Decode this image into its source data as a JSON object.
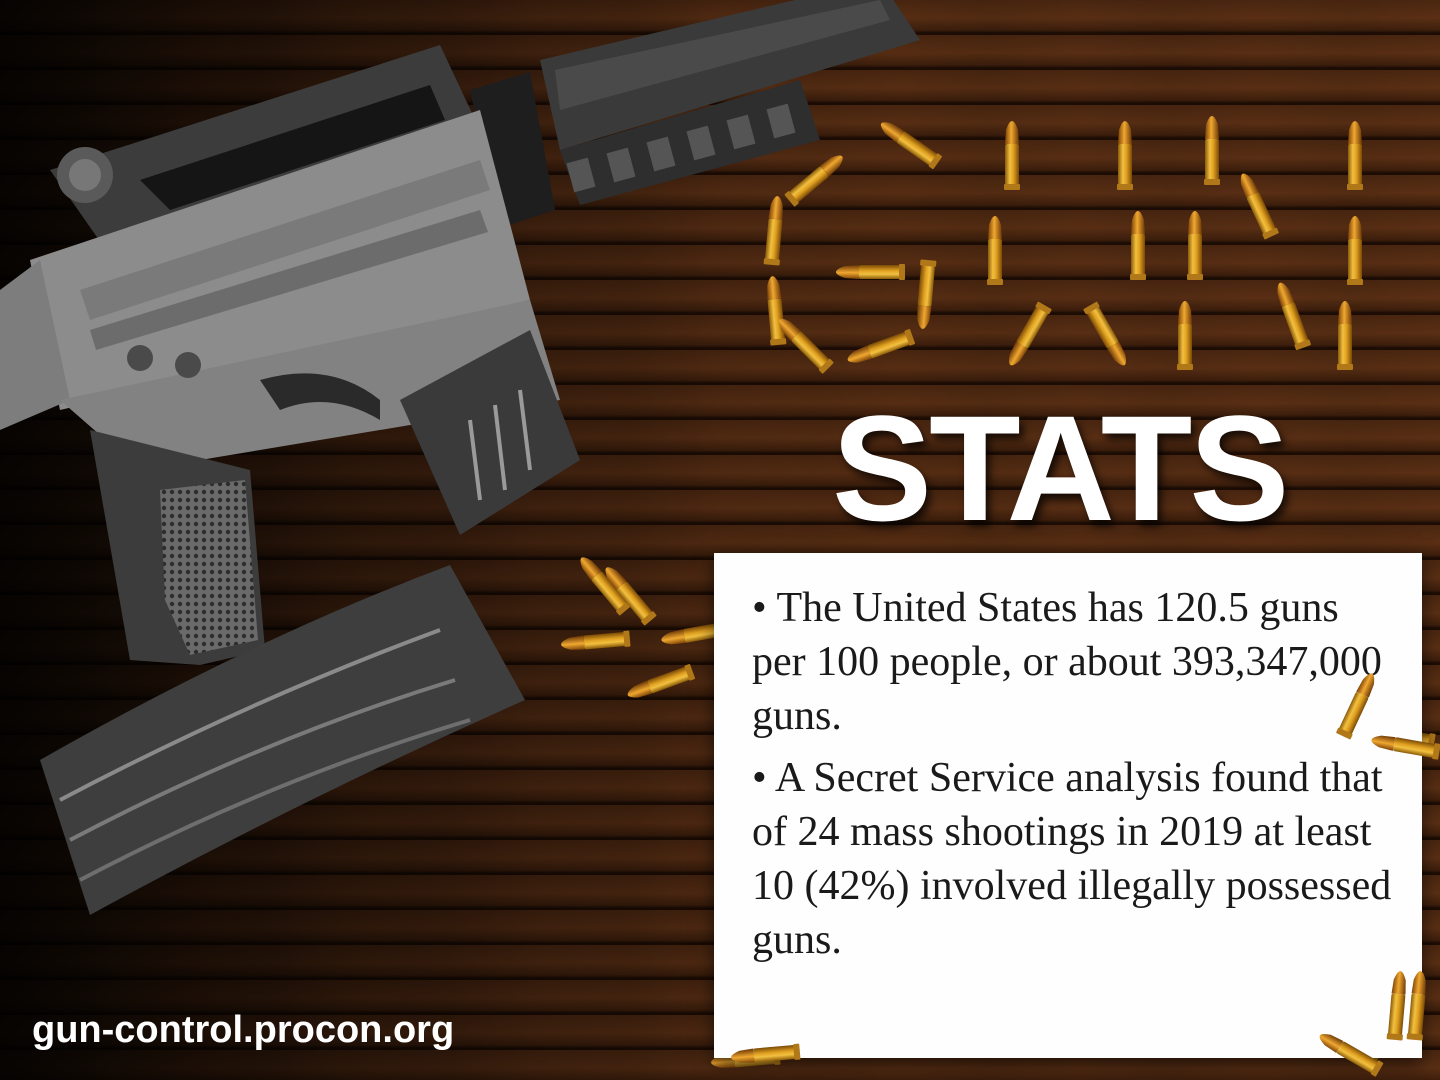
{
  "title_top": "GUN",
  "title_bottom": "STATS",
  "facts": [
    "• The United States has 120.5 guns per 100 people, or about 393,347,000 guns.",
    "• A Secret Service analysis found that of 24 mass shootings in 2019 at least 10 (42%) involved illegally possessed guns."
  ],
  "website": "gun-control.procon.org",
  "colors": {
    "bullet": "#e0a020",
    "card": "#fefefe",
    "title": "#ffffff",
    "rifle": "#8e8e8e"
  },
  "icons": [
    "rifle-icon",
    "magazine-icon",
    "bullet-icon"
  ]
}
